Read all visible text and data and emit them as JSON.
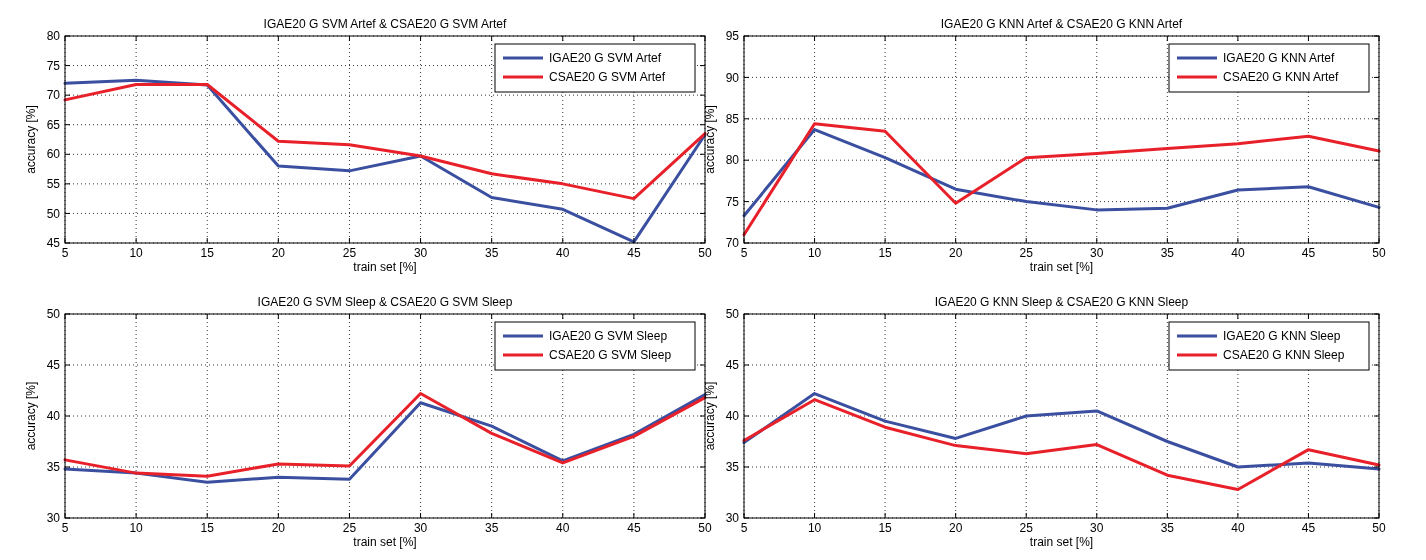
{
  "chart_data": [
    {
      "type": "line",
      "title": "IGAE20 G SVM Artef & CSAE20 G SVM Artef",
      "xlabel": "train set [%]",
      "ylabel": "accuracy [%]",
      "x": [
        5,
        10,
        15,
        20,
        25,
        30,
        35,
        40,
        45,
        50
      ],
      "xlim": [
        5,
        50
      ],
      "xticks": [
        5,
        10,
        15,
        20,
        25,
        30,
        35,
        40,
        45,
        50
      ],
      "ylim": [
        45,
        80
      ],
      "yticks": [
        45,
        50,
        55,
        60,
        65,
        70,
        75,
        80
      ],
      "grid": true,
      "legend": "top right",
      "series": [
        {
          "name": "IGAE20 G SVM Artef",
          "color": "#3a4fa0",
          "values": [
            72.0,
            72.5,
            71.7,
            58.0,
            57.2,
            59.7,
            52.7,
            50.7,
            45.2,
            63.3
          ]
        },
        {
          "name": "CSAE20 G SVM Artef",
          "color": "#e8202a",
          "values": [
            69.2,
            71.8,
            71.8,
            62.2,
            61.6,
            59.7,
            56.7,
            55.0,
            52.5,
            63.5
          ]
        }
      ]
    },
    {
      "type": "line",
      "title": "IGAE20 G KNN Artef & CSAE20 G KNN Artef",
      "xlabel": "train set [%]",
      "ylabel": "accuracy [%]",
      "x": [
        5,
        10,
        15,
        20,
        25,
        30,
        35,
        40,
        45,
        50
      ],
      "xlim": [
        5,
        50
      ],
      "xticks": [
        5,
        10,
        15,
        20,
        25,
        30,
        35,
        40,
        45,
        50
      ],
      "ylim": [
        70,
        95
      ],
      "yticks": [
        70,
        75,
        80,
        85,
        90,
        95
      ],
      "grid": true,
      "legend": "top right",
      "series": [
        {
          "name": "IGAE20 G KNN Artef",
          "color": "#3a4fa0",
          "values": [
            73.3,
            83.7,
            80.3,
            76.5,
            75.0,
            74.0,
            74.2,
            76.4,
            76.8,
            74.3
          ]
        },
        {
          "name": "CSAE20 G KNN Artef",
          "color": "#e8202a",
          "values": [
            71.0,
            84.4,
            83.5,
            74.8,
            80.3,
            80.8,
            81.4,
            82.0,
            82.9,
            81.1
          ]
        }
      ]
    },
    {
      "type": "line",
      "title": "IGAE20 G SVM Sleep & CSAE20 G SVM Sleep",
      "xlabel": "train set [%]",
      "ylabel": "accuracy [%]",
      "x": [
        5,
        10,
        15,
        20,
        25,
        30,
        35,
        40,
        45,
        50
      ],
      "xlim": [
        5,
        50
      ],
      "xticks": [
        5,
        10,
        15,
        20,
        25,
        30,
        35,
        40,
        45,
        50
      ],
      "ylim": [
        30,
        50
      ],
      "yticks": [
        30,
        35,
        40,
        45,
        50
      ],
      "grid": true,
      "legend": "top right",
      "series": [
        {
          "name": "IGAE20 G SVM Sleep",
          "color": "#3a4fa0",
          "values": [
            34.8,
            34.4,
            33.5,
            34.0,
            33.8,
            41.3,
            39.0,
            35.6,
            38.2,
            42.1
          ]
        },
        {
          "name": "CSAE20 G SVM Sleep",
          "color": "#e8202a",
          "values": [
            35.7,
            34.4,
            34.1,
            35.3,
            35.1,
            42.2,
            38.3,
            35.4,
            38.0,
            41.8
          ]
        }
      ]
    },
    {
      "type": "line",
      "title": "IGAE20 G KNN Sleep & CSAE20 G KNN Sleep",
      "xlabel": "train set [%]",
      "ylabel": "accuracy [%]",
      "x": [
        5,
        10,
        15,
        20,
        25,
        30,
        35,
        40,
        45,
        50
      ],
      "xlim": [
        5,
        50
      ],
      "xticks": [
        5,
        10,
        15,
        20,
        25,
        30,
        35,
        40,
        45,
        50
      ],
      "ylim": [
        30,
        50
      ],
      "yticks": [
        30,
        35,
        40,
        45,
        50
      ],
      "grid": true,
      "legend": "top right",
      "series": [
        {
          "name": "IGAE20 G KNN Sleep",
          "color": "#3a4fa0",
          "values": [
            37.4,
            42.2,
            39.5,
            37.8,
            40.0,
            40.5,
            37.5,
            35.0,
            35.4,
            34.8
          ]
        },
        {
          "name": "CSAE20 G KNN Sleep",
          "color": "#e8202a",
          "values": [
            37.6,
            41.6,
            38.9,
            37.1,
            36.3,
            37.2,
            34.2,
            32.8,
            36.7,
            35.2
          ]
        }
      ]
    }
  ]
}
